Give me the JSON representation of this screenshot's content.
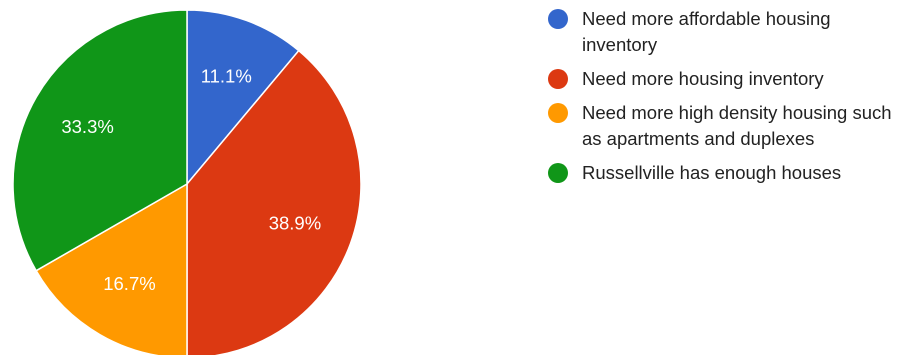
{
  "chart_data": {
    "type": "pie",
    "title": "",
    "categories": [
      "Need more affordable housing inventory",
      "Need more housing inventory",
      "Need more high density housing such as apartments and duplexes",
      "Russellville has enough houses"
    ],
    "values": [
      11.1,
      38.9,
      16.7,
      33.3
    ],
    "value_labels": [
      "11.1%",
      "38.9%",
      "16.7%",
      "33.3%"
    ],
    "colors": [
      "#3366cc",
      "#dc3912",
      "#ff9900",
      "#109618"
    ],
    "legend_position": "right"
  }
}
